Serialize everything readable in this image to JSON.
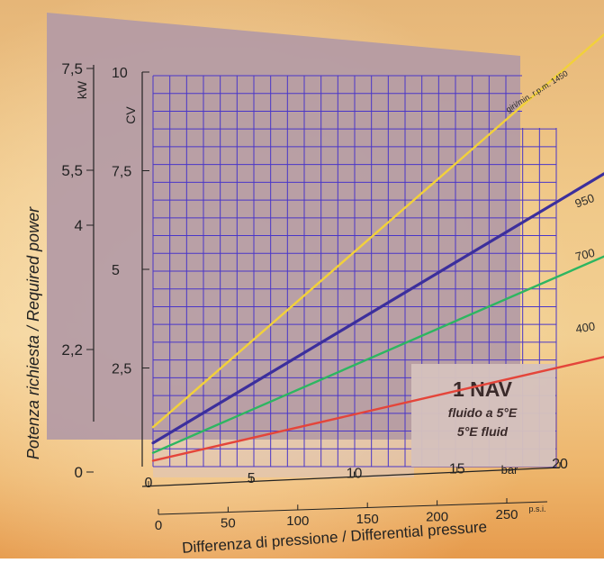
{
  "chart_data": {
    "type": "line",
    "xlabel": "Differenza di pressione / Differential pressure",
    "ylabel": "Potenza richiesta / Required power",
    "x_axes": {
      "bar": {
        "unit": "bar",
        "ticks": [
          "0",
          "5",
          "10",
          "15",
          "20"
        ],
        "range": [
          0,
          20
        ]
      },
      "psi": {
        "unit": "p.s.i.",
        "ticks": [
          "0",
          "50",
          "100",
          "150",
          "200",
          "250"
        ],
        "range": [
          0,
          290
        ]
      }
    },
    "y_axes": {
      "cv": {
        "unit": "CV",
        "ticks": [
          "10",
          "7,5",
          "5",
          "2,5"
        ],
        "range": [
          0,
          10
        ]
      },
      "kw": {
        "unit": "kW",
        "ticks": [
          "7,5",
          "5,5",
          "4",
          "2,2",
          "0"
        ],
        "range": [
          0,
          7.5
        ]
      }
    },
    "series": [
      {
        "name": "giri/min. r.p.m. 1450",
        "color": "#f2d13a",
        "x": [
          0,
          20
        ],
        "y": [
          1.0,
          9.9
        ]
      },
      {
        "name": "950",
        "color": "#3c2f9c",
        "x": [
          0,
          20
        ],
        "y": [
          0.6,
          6.7
        ]
      },
      {
        "name": "700",
        "color": "#2db661",
        "x": [
          0,
          20
        ],
        "y": [
          0.35,
          4.8
        ]
      },
      {
        "name": "400",
        "color": "#e4453a",
        "x": [
          0,
          20
        ],
        "y": [
          0.15,
          2.5
        ]
      }
    ],
    "annotation": {
      "title": "1 NAV",
      "line1": "fluido a 5°E",
      "line2": "5°E fluid"
    },
    "grid": true,
    "grid_color": "#4a36c8",
    "panel_color": "#b39aa5"
  }
}
